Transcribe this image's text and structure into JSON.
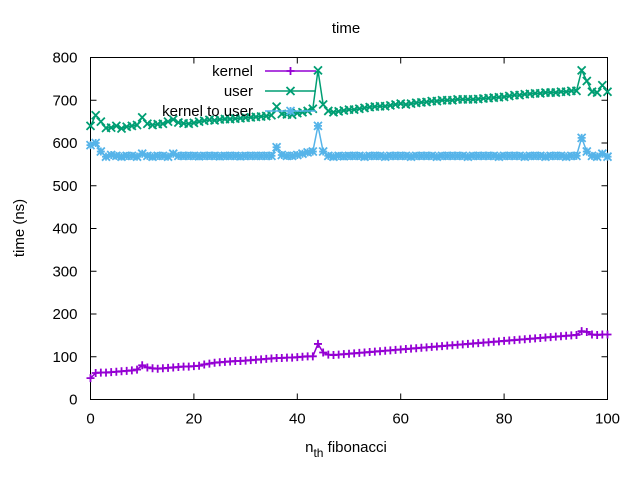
{
  "chart_data": {
    "type": "line",
    "title": "time",
    "xlabel_main": "n",
    "xlabel_sub": "th",
    "xlabel_rest": " fibonacci",
    "ylabel": "time (ns)",
    "xlim": [
      0,
      100
    ],
    "ylim": [
      0,
      800
    ],
    "xticks": [
      0,
      20,
      40,
      60,
      80,
      100
    ],
    "yticks": [
      0,
      100,
      200,
      300,
      400,
      500,
      600,
      700,
      800
    ],
    "grid": false,
    "legend_position": "top-center",
    "x": [
      0,
      1,
      2,
      3,
      4,
      5,
      6,
      7,
      8,
      9,
      10,
      11,
      12,
      13,
      14,
      15,
      16,
      17,
      18,
      19,
      20,
      21,
      22,
      23,
      24,
      25,
      26,
      27,
      28,
      29,
      30,
      31,
      32,
      33,
      34,
      35,
      36,
      37,
      38,
      39,
      40,
      41,
      42,
      43,
      44,
      45,
      46,
      47,
      48,
      49,
      50,
      51,
      52,
      53,
      54,
      55,
      56,
      57,
      58,
      59,
      60,
      61,
      62,
      63,
      64,
      65,
      66,
      67,
      68,
      69,
      70,
      71,
      72,
      73,
      74,
      75,
      76,
      77,
      78,
      79,
      80,
      81,
      82,
      83,
      84,
      85,
      86,
      87,
      88,
      89,
      90,
      91,
      92,
      93,
      94,
      95,
      96,
      97,
      98,
      99,
      100
    ],
    "series": [
      {
        "name": "kernel",
        "color": "#9400d3",
        "marker": "plus",
        "values": [
          50,
          62,
          63,
          63,
          64,
          65,
          66,
          67,
          68,
          70,
          80,
          75,
          73,
          72,
          73,
          74,
          75,
          76,
          77,
          77,
          78,
          79,
          82,
          84,
          86,
          87,
          88,
          89,
          90,
          90,
          91,
          92,
          93,
          94,
          95,
          96,
          97,
          97,
          98,
          98,
          99,
          100,
          101,
          101,
          130,
          110,
          105,
          104,
          105,
          106,
          107,
          108,
          109,
          110,
          111,
          112,
          113,
          114,
          115,
          116,
          117,
          118,
          119,
          120,
          121,
          122,
          123,
          124,
          125,
          126,
          127,
          128,
          129,
          130,
          131,
          132,
          133,
          134,
          135,
          136,
          137,
          138,
          139,
          140,
          141,
          142,
          143,
          144,
          145,
          146,
          147,
          148,
          149,
          150,
          151,
          160,
          158,
          152,
          151,
          152,
          152
        ]
      },
      {
        "name": "user",
        "color": "#009e73",
        "marker": "cross",
        "values": [
          640,
          665,
          650,
          635,
          636,
          640,
          634,
          638,
          640,
          642,
          660,
          645,
          642,
          644,
          645,
          650,
          655,
          648,
          646,
          645,
          647,
          650,
          652,
          654,
          653,
          655,
          656,
          656,
          657,
          658,
          659,
          660,
          661,
          662,
          663,
          665,
          685,
          668,
          667,
          666,
          670,
          672,
          675,
          680,
          770,
          690,
          675,
          672,
          674,
          676,
          678,
          678,
          680,
          682,
          684,
          685,
          686,
          686,
          688,
          690,
          692,
          690,
          692,
          694,
          695,
          696,
          698,
          698,
          700,
          700,
          700,
          702,
          702,
          702,
          702,
          703,
          704,
          705,
          706,
          707,
          708,
          710,
          712,
          712,
          714,
          715,
          716,
          716,
          718,
          718,
          718,
          720,
          720,
          722,
          722,
          770,
          745,
          720,
          718,
          735,
          720
        ]
      },
      {
        "name": "kernel to user",
        "color": "#56b4e9",
        "marker": "square",
        "values": [
          595,
          600,
          580,
          568,
          572,
          570,
          568,
          570,
          570,
          568,
          575,
          570,
          568,
          570,
          570,
          568,
          575,
          570,
          570,
          570,
          570,
          569,
          570,
          570,
          570,
          569,
          570,
          570,
          570,
          569,
          570,
          570,
          570,
          570,
          570,
          570,
          590,
          572,
          570,
          570,
          572,
          575,
          578,
          580,
          640,
          580,
          570,
          568,
          570,
          569,
          570,
          570,
          570,
          568,
          570,
          570,
          570,
          568,
          570,
          570,
          570,
          570,
          568,
          570,
          570,
          570,
          570,
          568,
          570,
          570,
          570,
          570,
          570,
          568,
          570,
          570,
          570,
          570,
          570,
          568,
          570,
          570,
          570,
          570,
          568,
          570,
          570,
          570,
          568,
          570,
          570,
          570,
          568,
          570,
          570,
          612,
          580,
          570,
          568,
          575,
          568
        ]
      }
    ]
  }
}
